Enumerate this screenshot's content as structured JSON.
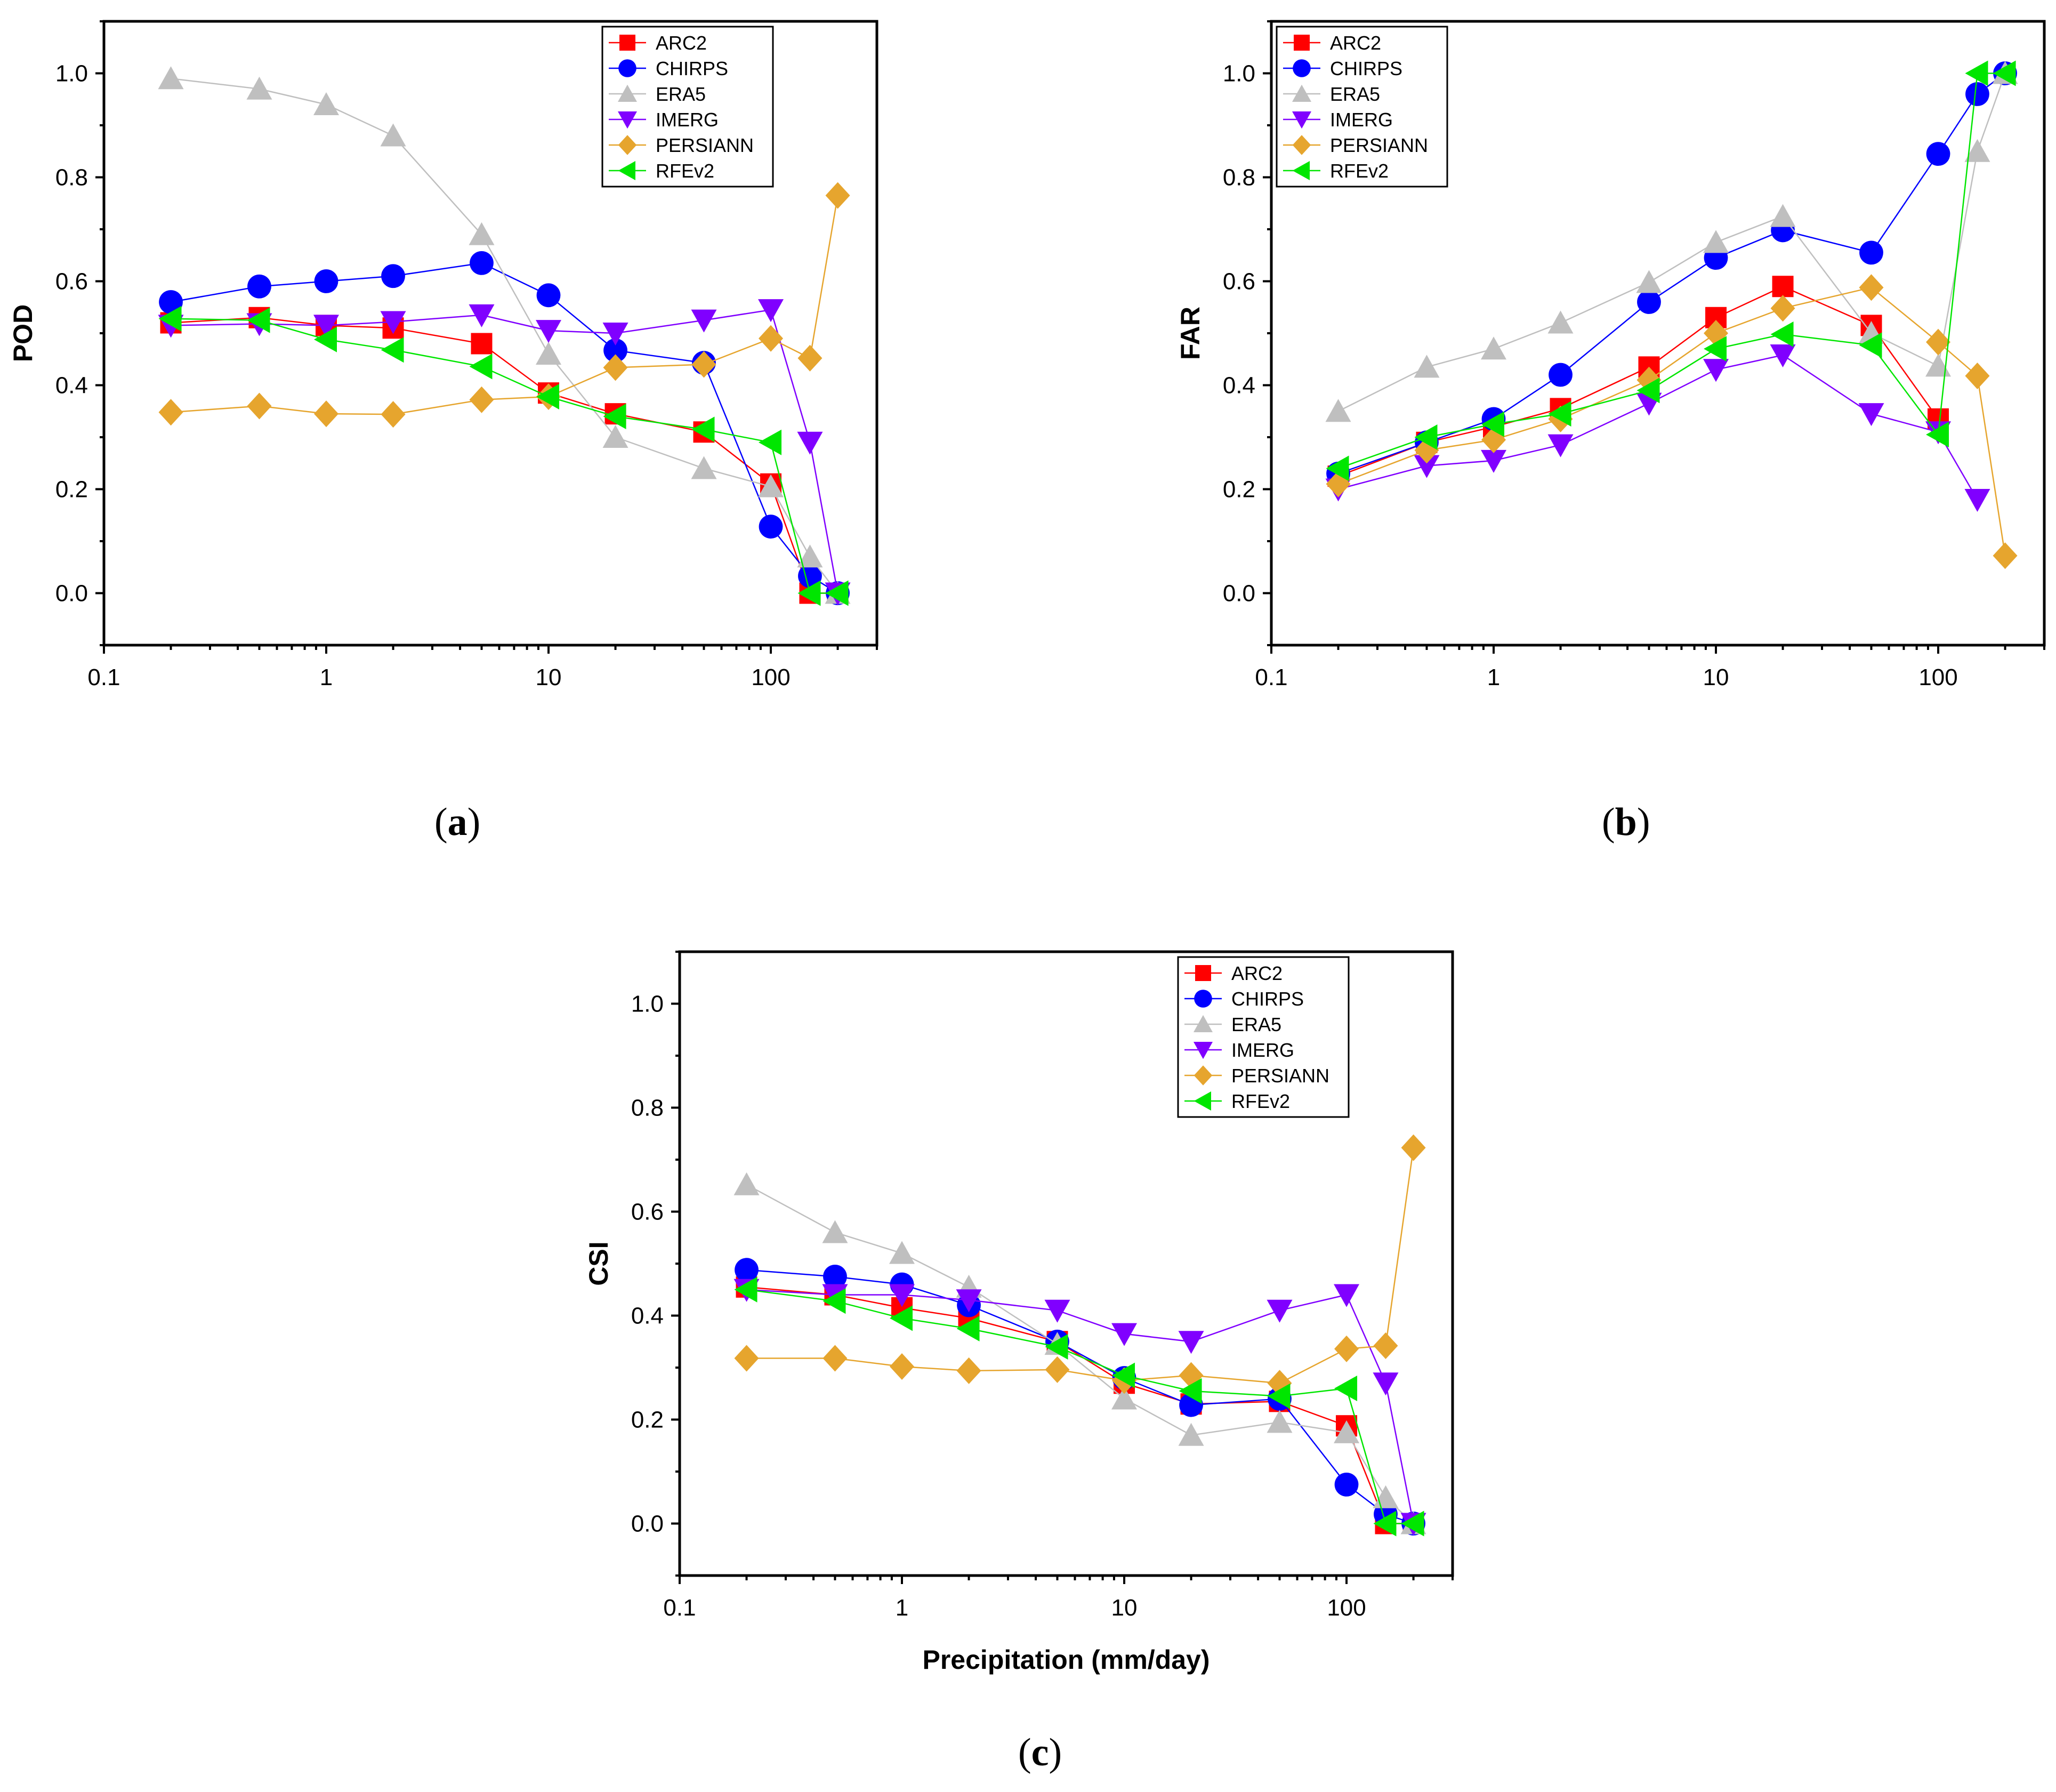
{
  "chart_data": [
    {
      "type": "scatter",
      "ylabel": "POD",
      "xlabel": "",
      "xscale": "log",
      "xlim": [
        0.1,
        300
      ],
      "ylim": [
        -0.1,
        1.1
      ],
      "xticks": [
        0.1,
        1,
        10,
        100
      ],
      "xtick_labels": [
        "0.1",
        "1",
        "10",
        "100"
      ],
      "yticks": [
        0.0,
        0.2,
        0.4,
        0.6,
        0.8,
        1.0
      ],
      "ytick_labels": [
        "0.0",
        "0.2",
        "0.4",
        "0.6",
        "0.8",
        "1.0"
      ],
      "legend_position": "top-right",
      "x": [
        0.2,
        0.5,
        1,
        2,
        5,
        10,
        20,
        50,
        100,
        150,
        200
      ],
      "series": [
        {
          "name": "ARC2",
          "values": [
            0.52,
            0.53,
            0.515,
            0.51,
            0.48,
            0.385,
            0.345,
            0.31,
            0.21,
            0.0,
            0.0
          ]
        },
        {
          "name": "CHIRPS",
          "values": [
            0.56,
            0.59,
            0.6,
            0.61,
            0.635,
            0.573,
            0.467,
            0.443,
            0.128,
            0.033,
            0.0
          ]
        },
        {
          "name": "ERA5",
          "values": [
            0.99,
            0.97,
            0.94,
            0.88,
            0.69,
            0.46,
            0.3,
            0.24,
            0.205,
            0.07,
            0.0
          ]
        },
        {
          "name": "IMERG",
          "values": [
            0.515,
            0.518,
            0.515,
            0.522,
            0.535,
            0.505,
            0.5,
            0.525,
            0.545,
            0.29,
            0.0
          ]
        },
        {
          "name": "PERSIANN",
          "values": [
            0.348,
            0.36,
            0.345,
            0.344,
            0.372,
            0.378,
            0.434,
            0.44,
            0.49,
            0.452,
            0.765
          ]
        },
        {
          "name": "RFEv2",
          "values": [
            0.528,
            0.525,
            0.488,
            0.468,
            0.436,
            0.378,
            0.34,
            0.315,
            0.29,
            0.0,
            0.0
          ]
        }
      ]
    },
    {
      "type": "scatter",
      "ylabel": "FAR",
      "xlabel": "",
      "xscale": "log",
      "xlim": [
        0.1,
        300
      ],
      "ylim": [
        -0.1,
        1.1
      ],
      "xticks": [
        0.1,
        1,
        10,
        100
      ],
      "xtick_labels": [
        "0.1",
        "1",
        "10",
        "100"
      ],
      "yticks": [
        0.0,
        0.2,
        0.4,
        0.6,
        0.8,
        1.0
      ],
      "ytick_labels": [
        "0.0",
        "0.2",
        "0.4",
        "0.6",
        "0.8",
        "1.0"
      ],
      "legend_position": "top-left",
      "x": [
        0.2,
        0.5,
        1,
        2,
        5,
        10,
        20,
        50,
        100,
        150,
        200
      ],
      "series": [
        {
          "name": "ARC2",
          "values": [
            0.225,
            0.29,
            0.32,
            0.355,
            0.435,
            0.53,
            0.59,
            0.515,
            0.335,
            null,
            null
          ]
        },
        {
          "name": "CHIRPS",
          "values": [
            0.23,
            0.29,
            0.335,
            0.42,
            0.56,
            0.645,
            0.698,
            0.655,
            0.845,
            0.96,
            1.0
          ]
        },
        {
          "name": "ERA5",
          "values": [
            0.35,
            0.435,
            0.47,
            0.52,
            0.598,
            0.675,
            0.725,
            0.5,
            0.437,
            0.85,
            1.0
          ]
        },
        {
          "name": "IMERG",
          "values": [
            0.2,
            0.245,
            0.255,
            0.285,
            0.365,
            0.43,
            0.458,
            0.345,
            0.31,
            0.18,
            null
          ]
        },
        {
          "name": "PERSIANN",
          "values": [
            0.21,
            0.275,
            0.295,
            0.335,
            0.41,
            0.5,
            0.548,
            0.588,
            0.483,
            0.418,
            0.072
          ]
        },
        {
          "name": "RFEv2",
          "values": [
            0.24,
            0.3,
            0.325,
            0.345,
            0.39,
            0.47,
            0.498,
            0.477,
            0.305,
            1.0,
            1.0
          ]
        }
      ]
    },
    {
      "type": "scatter",
      "ylabel": "CSI",
      "xlabel": "Precipitation (mm/day)",
      "xscale": "log",
      "xlim": [
        0.1,
        300
      ],
      "ylim": [
        -0.1,
        1.1
      ],
      "xticks": [
        0.1,
        1,
        10,
        100
      ],
      "xtick_labels": [
        "0.1",
        "1",
        "10",
        "100"
      ],
      "yticks": [
        0.0,
        0.2,
        0.4,
        0.6,
        0.8,
        1.0
      ],
      "ytick_labels": [
        "0.0",
        "0.2",
        "0.4",
        "0.6",
        "0.8",
        "1.0"
      ],
      "legend_position": "top-right",
      "x": [
        0.2,
        0.5,
        1,
        2,
        5,
        10,
        20,
        50,
        100,
        150,
        200
      ],
      "series": [
        {
          "name": "ARC2",
          "values": [
            0.455,
            0.44,
            0.415,
            0.395,
            0.35,
            0.27,
            0.23,
            0.235,
            0.188,
            0.0,
            0.0
          ]
        },
        {
          "name": "CHIRPS",
          "values": [
            0.488,
            0.475,
            0.46,
            0.42,
            0.35,
            0.28,
            0.228,
            0.24,
            0.075,
            0.018,
            0.0
          ]
        },
        {
          "name": "ERA5",
          "values": [
            0.652,
            0.56,
            0.52,
            0.455,
            0.345,
            0.24,
            0.17,
            0.195,
            0.175,
            0.05,
            0.0
          ]
        },
        {
          "name": "IMERG",
          "values": [
            0.45,
            0.44,
            0.44,
            0.43,
            0.41,
            0.365,
            0.35,
            0.41,
            0.44,
            0.27,
            0.0
          ]
        },
        {
          "name": "PERSIANN",
          "values": [
            0.318,
            0.318,
            0.302,
            0.294,
            0.296,
            0.275,
            0.285,
            0.27,
            0.336,
            0.342,
            0.723
          ]
        },
        {
          "name": "RFEv2",
          "values": [
            0.45,
            0.428,
            0.395,
            0.375,
            0.34,
            0.285,
            0.255,
            0.245,
            0.26,
            0.0,
            0.0
          ]
        }
      ]
    }
  ],
  "series_style": {
    "ARC2": {
      "color": "#ff0000",
      "marker": "square"
    },
    "CHIRPS": {
      "color": "#0000ff",
      "marker": "circle"
    },
    "ERA5": {
      "color": "#bfbfbf",
      "marker": "triangle-up"
    },
    "IMERG": {
      "color": "#8000ff",
      "marker": "triangle-down"
    },
    "PERSIANN": {
      "color": "#e6a52e",
      "marker": "diamond"
    },
    "RFEv2": {
      "color": "#00e600",
      "marker": "triangle-left"
    }
  },
  "captions": {
    "a": {
      "open": "(",
      "letter": "a",
      "close": ")"
    },
    "b": {
      "open": "(",
      "letter": "b",
      "close": ")"
    },
    "c": {
      "open": "(",
      "letter": "c",
      "close": ")"
    }
  }
}
